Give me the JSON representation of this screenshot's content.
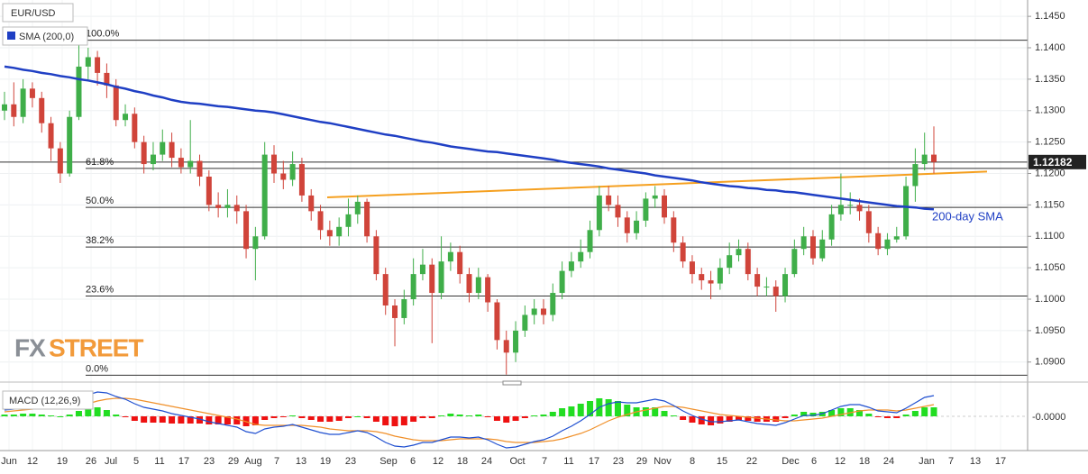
{
  "chart_data": {
    "type": "candlestick",
    "symbol": "EUR/USD",
    "legend_sma": "SMA (200,0)",
    "up_color": "#3fae49",
    "down_color": "#d0443a",
    "ylim": [
      1.0871,
      1.1476
    ],
    "yticks": [
      {
        "value": 1.09,
        "label": "1.0900"
      },
      {
        "value": 1.095,
        "label": "1.0950"
      },
      {
        "value": 1.1,
        "label": "1.1000"
      },
      {
        "value": 1.105,
        "label": "1.1050"
      },
      {
        "value": 1.11,
        "label": "1.1100"
      },
      {
        "value": 1.115,
        "label": "1.1150"
      },
      {
        "value": 1.12,
        "label": "1.1200"
      },
      {
        "value": 1.125,
        "label": "1.1250"
      },
      {
        "value": 1.13,
        "label": "1.1300"
      },
      {
        "value": 1.135,
        "label": "1.1350"
      },
      {
        "value": 1.14,
        "label": "1.1400"
      },
      {
        "value": 1.145,
        "label": "1.1450"
      }
    ],
    "grid": true,
    "last_price": 1.12182,
    "x_labels": [
      "Jun",
      "12",
      "19",
      "26",
      "Jul",
      "5",
      "11",
      "17",
      "23",
      "29",
      "Aug",
      "7",
      "13",
      "19",
      "23",
      "Sep",
      "6",
      "12",
      "18",
      "24",
      "Oct",
      "7",
      "11",
      "17",
      "23",
      "29",
      "Nov",
      "8",
      "15",
      "22",
      "Dec",
      "6",
      "12",
      "18",
      "24",
      "Jan",
      "7",
      "13",
      "17"
    ],
    "candles": [
      [
        1.13,
        1.133,
        1.1285,
        1.131
      ],
      [
        1.131,
        1.1345,
        1.1275,
        1.129
      ],
      [
        1.129,
        1.135,
        1.128,
        1.1335
      ],
      [
        1.1335,
        1.1345,
        1.1305,
        1.132
      ],
      [
        1.132,
        1.133,
        1.1265,
        1.128
      ],
      [
        1.128,
        1.129,
        1.122,
        1.124
      ],
      [
        1.124,
        1.125,
        1.1185,
        1.12
      ],
      [
        1.12,
        1.13,
        1.1195,
        1.129
      ],
      [
        1.129,
        1.141,
        1.1285,
        1.137
      ],
      [
        1.137,
        1.14,
        1.135,
        1.1385
      ],
      [
        1.1385,
        1.1395,
        1.134,
        1.136
      ],
      [
        1.136,
        1.1375,
        1.132,
        1.134
      ],
      [
        1.134,
        1.135,
        1.1275,
        1.1285
      ],
      [
        1.1285,
        1.131,
        1.1275,
        1.1295
      ],
      [
        1.1295,
        1.1305,
        1.124,
        1.125
      ],
      [
        1.125,
        1.126,
        1.12,
        1.1215
      ],
      [
        1.1215,
        1.125,
        1.1205,
        1.123
      ],
      [
        1.123,
        1.127,
        1.122,
        1.125
      ],
      [
        1.125,
        1.1265,
        1.121,
        1.1225
      ],
      [
        1.1225,
        1.124,
        1.12,
        1.121
      ],
      [
        1.121,
        1.1285,
        1.12,
        1.122
      ],
      [
        1.122,
        1.123,
        1.118,
        1.1195
      ],
      [
        1.1195,
        1.1205,
        1.114,
        1.115
      ],
      [
        1.115,
        1.117,
        1.113,
        1.1145
      ],
      [
        1.1145,
        1.1175,
        1.113,
        1.115
      ],
      [
        1.115,
        1.1165,
        1.112,
        1.114
      ],
      [
        1.114,
        1.115,
        1.1065,
        1.108
      ],
      [
        1.108,
        1.1115,
        1.103,
        1.11
      ],
      [
        1.11,
        1.125,
        1.1095,
        1.123
      ],
      [
        1.123,
        1.1245,
        1.1185,
        1.12
      ],
      [
        1.12,
        1.122,
        1.1175,
        1.119
      ],
      [
        1.119,
        1.1235,
        1.118,
        1.1215
      ],
      [
        1.1215,
        1.1225,
        1.1155,
        1.1165
      ],
      [
        1.1165,
        1.1175,
        1.1125,
        1.114
      ],
      [
        1.114,
        1.115,
        1.1095,
        1.111
      ],
      [
        1.111,
        1.1125,
        1.1085,
        1.11
      ],
      [
        1.11,
        1.113,
        1.1085,
        1.1115
      ],
      [
        1.1115,
        1.116,
        1.11,
        1.1135
      ],
      [
        1.1135,
        1.1165,
        1.112,
        1.1155
      ],
      [
        1.1155,
        1.116,
        1.109,
        1.11
      ],
      [
        1.11,
        1.111,
        1.103,
        1.104
      ],
      [
        1.104,
        1.105,
        1.0975,
        1.099
      ],
      [
        1.099,
        1.1,
        1.0925,
        1.097
      ],
      [
        1.097,
        1.1015,
        1.096,
        1.1
      ],
      [
        1.1,
        1.1065,
        1.099,
        1.104
      ],
      [
        1.104,
        1.108,
        1.103,
        1.1055
      ],
      [
        1.1055,
        1.1065,
        1.093,
        1.101
      ],
      [
        1.101,
        1.11,
        1.1,
        1.106
      ],
      [
        1.106,
        1.109,
        1.1045,
        1.1075
      ],
      [
        1.1075,
        1.1085,
        1.1025,
        1.104
      ],
      [
        1.104,
        1.105,
        1.0995,
        1.101
      ],
      [
        1.101,
        1.105,
        1.1,
        1.1035
      ],
      [
        1.1035,
        1.104,
        1.098,
        1.0995
      ],
      [
        1.0995,
        1.1,
        1.092,
        1.0935
      ],
      [
        1.0935,
        1.095,
        1.088,
        1.0915
      ],
      [
        1.0915,
        1.0965,
        1.09,
        1.095
      ],
      [
        1.095,
        1.099,
        1.094,
        1.0975
      ],
      [
        1.0975,
        1.1,
        1.096,
        1.0985
      ],
      [
        1.0985,
        1.1,
        1.096,
        1.0975
      ],
      [
        1.0975,
        1.1025,
        1.0965,
        1.101
      ],
      [
        1.101,
        1.106,
        1.1,
        1.1045
      ],
      [
        1.1045,
        1.1075,
        1.1035,
        1.106
      ],
      [
        1.106,
        1.1095,
        1.105,
        1.1075
      ],
      [
        1.1075,
        1.1125,
        1.1065,
        1.111
      ],
      [
        1.111,
        1.118,
        1.11,
        1.1165
      ],
      [
        1.1165,
        1.118,
        1.114,
        1.115
      ],
      [
        1.115,
        1.1165,
        1.1115,
        1.113
      ],
      [
        1.113,
        1.114,
        1.109,
        1.1105
      ],
      [
        1.1105,
        1.114,
        1.1095,
        1.1125
      ],
      [
        1.1125,
        1.117,
        1.1115,
        1.116
      ],
      [
        1.116,
        1.118,
        1.1145,
        1.1165
      ],
      [
        1.1165,
        1.1175,
        1.112,
        1.113
      ],
      [
        1.113,
        1.114,
        1.1075,
        1.109
      ],
      [
        1.109,
        1.11,
        1.105,
        1.106
      ],
      [
        1.106,
        1.107,
        1.1025,
        1.104
      ],
      [
        1.104,
        1.105,
        1.1015,
        1.103
      ],
      [
        1.103,
        1.1045,
        1.1,
        1.1025
      ],
      [
        1.1025,
        1.1065,
        1.1015,
        1.105
      ],
      [
        1.105,
        1.109,
        1.104,
        1.107
      ],
      [
        1.107,
        1.1095,
        1.106,
        1.108
      ],
      [
        1.108,
        1.109,
        1.103,
        1.104
      ],
      [
        1.104,
        1.105,
        1.1005,
        1.102
      ],
      [
        1.102,
        1.1035,
        1.1005,
        1.102
      ],
      [
        1.102,
        1.103,
        1.098,
        1.1005
      ],
      [
        1.1005,
        1.105,
        1.0995,
        1.104
      ],
      [
        1.104,
        1.1095,
        1.1035,
        1.108
      ],
      [
        1.108,
        1.1115,
        1.107,
        1.11
      ],
      [
        1.11,
        1.111,
        1.1055,
        1.1065
      ],
      [
        1.1065,
        1.111,
        1.106,
        1.1095
      ],
      [
        1.1095,
        1.115,
        1.1085,
        1.1135
      ],
      [
        1.1135,
        1.12,
        1.1125,
        1.115
      ],
      [
        1.115,
        1.117,
        1.1135,
        1.115
      ],
      [
        1.115,
        1.116,
        1.1125,
        1.114
      ],
      [
        1.114,
        1.115,
        1.109,
        1.1105
      ],
      [
        1.1105,
        1.1115,
        1.107,
        1.108
      ],
      [
        1.108,
        1.1105,
        1.107,
        1.1095
      ],
      [
        1.1095,
        1.1115,
        1.109,
        1.11
      ],
      [
        1.11,
        1.1195,
        1.1095,
        1.118
      ],
      [
        1.118,
        1.124,
        1.1155,
        1.1215
      ],
      [
        1.1215,
        1.1265,
        1.1205,
        1.123
      ],
      [
        1.123,
        1.1275,
        1.12,
        1.12182
      ]
    ],
    "sma": {
      "name": "SMA (200,0)",
      "color": "#1f3fc4",
      "values": [
        1.137,
        1.1368,
        1.1365,
        1.1363,
        1.136,
        1.1358,
        1.1355,
        1.1353,
        1.135,
        1.1348,
        1.1345,
        1.1342,
        1.1338,
        1.1335,
        1.1331,
        1.1328,
        1.1324,
        1.1321,
        1.1317,
        1.1314,
        1.1312,
        1.1311,
        1.1309,
        1.1307,
        1.1306,
        1.1304,
        1.1302,
        1.13,
        1.1299,
        1.1297,
        1.1294,
        1.1291,
        1.1288,
        1.1285,
        1.1282,
        1.128,
        1.1277,
        1.1274,
        1.1271,
        1.1268,
        1.1265,
        1.1262,
        1.126,
        1.1257,
        1.1254,
        1.1251,
        1.1249,
        1.1246,
        1.1243,
        1.1241,
        1.1239,
        1.1237,
        1.1235,
        1.1234,
        1.1232,
        1.123,
        1.1228,
        1.1226,
        1.1224,
        1.1222,
        1.1219,
        1.1217,
        1.1215,
        1.1213,
        1.1211,
        1.1208,
        1.1206,
        1.1204,
        1.1202,
        1.12,
        1.1197,
        1.1195,
        1.1193,
        1.1191,
        1.1189,
        1.1186,
        1.1184,
        1.1182,
        1.118,
        1.1179,
        1.1177,
        1.1176,
        1.1174,
        1.1173,
        1.1171,
        1.117,
        1.1168,
        1.1166,
        1.1164,
        1.1162,
        1.116,
        1.1158,
        1.1156,
        1.1154,
        1.1152,
        1.115,
        1.1148,
        1.1147,
        1.1146,
        1.1144,
        1.1143
      ]
    },
    "sma_annotation": "200-day SMA",
    "trendline": {
      "color": "#f5a020",
      "values": [
        1.1162,
        1.1203
      ]
    },
    "fib_levels": [
      {
        "label": "100.0%",
        "value": 1.1412
      },
      {
        "label": "61.8%",
        "value": 1.1208
      },
      {
        "label": "50.0%",
        "value": 1.1146
      },
      {
        "label": "38.2%",
        "value": 1.1083
      },
      {
        "label": "23.6%",
        "value": 1.1005
      },
      {
        "label": "0.0%",
        "value": 1.0879
      }
    ],
    "brand": [
      "FX",
      "STREET"
    ],
    "macd": {
      "title": "MACD (12,26,9)",
      "ylim": [
        -0.0038,
        0.0032
      ],
      "yticks": [
        {
          "value": 0,
          "label": "-0.0000"
        }
      ],
      "macd_color": "#1f4fd0",
      "signal_color": "#f0902a",
      "hist_up_color": "#22dd22",
      "hist_down_color": "#ee1111",
      "macd": [
        0.0007,
        0.0008,
        0.001,
        0.0011,
        0.0011,
        0.001,
        0.0009,
        0.0012,
        0.0018,
        0.0024,
        0.0027,
        0.0026,
        0.0022,
        0.0019,
        0.0014,
        0.001,
        0.0008,
        0.0006,
        0.0003,
        0.0001,
        -0.0001,
        -0.0003,
        -0.0006,
        -0.0008,
        -0.001,
        -0.0012,
        -0.0017,
        -0.0019,
        -0.0014,
        -0.0012,
        -0.0011,
        -0.0009,
        -0.0012,
        -0.0015,
        -0.0018,
        -0.002,
        -0.002,
        -0.0018,
        -0.0016,
        -0.0018,
        -0.0023,
        -0.0029,
        -0.0033,
        -0.0034,
        -0.0032,
        -0.0029,
        -0.0029,
        -0.0026,
        -0.0023,
        -0.0023,
        -0.0024,
        -0.0023,
        -0.0026,
        -0.0031,
        -0.0035,
        -0.0034,
        -0.0031,
        -0.0028,
        -0.0026,
        -0.0022,
        -0.0016,
        -0.0011,
        -0.0005,
        0.0002,
        0.001,
        0.0014,
        0.0016,
        0.0015,
        0.0015,
        0.0017,
        0.0019,
        0.0017,
        0.0012,
        0.0006,
        0.0001,
        -0.0003,
        -0.0006,
        -0.0006,
        -0.0005,
        -0.0004,
        -0.0006,
        -0.0008,
        -0.0009,
        -0.001,
        -0.0007,
        -0.0003,
        0.0001,
        0.0001,
        0.0003,
        0.0007,
        0.0011,
        0.0013,
        0.0013,
        0.001,
        0.0006,
        0.0005,
        0.0004,
        0.0009,
        0.0015,
        0.0021,
        0.0023
      ],
      "signal": [
        0.0005,
        0.0006,
        0.0007,
        0.0008,
        0.0009,
        0.0009,
        0.0009,
        0.001,
        0.0012,
        0.0014,
        0.0017,
        0.0019,
        0.002,
        0.002,
        0.0019,
        0.0017,
        0.0015,
        0.0013,
        0.0011,
        0.0009,
        0.0007,
        0.0005,
        0.0003,
        0.0001,
        -0.0001,
        -0.0003,
        -0.0006,
        -0.0009,
        -0.001,
        -0.001,
        -0.001,
        -0.001,
        -0.001,
        -0.0011,
        -0.0012,
        -0.0014,
        -0.0015,
        -0.0016,
        -0.0016,
        -0.0016,
        -0.0017,
        -0.0019,
        -0.0022,
        -0.0024,
        -0.0026,
        -0.0027,
        -0.0027,
        -0.0027,
        -0.0026,
        -0.0025,
        -0.0025,
        -0.0025,
        -0.0025,
        -0.0026,
        -0.0028,
        -0.0029,
        -0.0029,
        -0.0029,
        -0.0028,
        -0.0027,
        -0.0025,
        -0.0022,
        -0.0019,
        -0.0015,
        -0.001,
        -0.0005,
        -0.0001,
        0.0002,
        0.0005,
        0.0007,
        0.0009,
        0.0011,
        0.0011,
        0.001,
        0.0008,
        0.0006,
        0.0004,
        0.0002,
        0.0001,
        0.0,
        -0.0001,
        -0.0002,
        -0.0003,
        -0.0004,
        -0.0005,
        -0.0005,
        -0.0004,
        -0.0003,
        -0.0002,
        0.0,
        0.0002,
        0.0004,
        0.0006,
        0.0007,
        0.0007,
        0.0007,
        0.0006,
        0.0007,
        0.0009,
        0.0011,
        0.0013
      ],
      "histogram": [
        0.0002,
        0.0002,
        0.0003,
        0.0003,
        0.0002,
        0.0001,
        0.0,
        0.0002,
        0.0006,
        0.001,
        0.001,
        0.0007,
        0.0002,
        -0.0001,
        -0.0005,
        -0.0007,
        -0.0007,
        -0.0007,
        -0.0008,
        -0.0008,
        -0.0008,
        -0.0008,
        -0.0009,
        -0.0009,
        -0.0009,
        -0.0009,
        -0.0011,
        -0.001,
        -0.0004,
        -0.0002,
        -0.0001,
        0.0001,
        -0.0002,
        -0.0004,
        -0.0006,
        -0.0006,
        -0.0005,
        -0.0002,
        0.0,
        -0.0002,
        -0.0006,
        -0.001,
        -0.0011,
        -0.001,
        -0.0006,
        -0.0002,
        -0.0002,
        0.0001,
        0.0003,
        0.0002,
        0.0001,
        0.0002,
        -0.0001,
        -0.0005,
        -0.0007,
        -0.0005,
        -0.0002,
        0.0001,
        0.0002,
        0.0005,
        0.0009,
        0.0011,
        0.0014,
        0.0017,
        0.002,
        0.0019,
        0.0017,
        0.0013,
        0.001,
        0.001,
        0.001,
        0.0006,
        0.0001,
        -0.0004,
        -0.0007,
        -0.0009,
        -0.001,
        -0.0008,
        -0.0006,
        -0.0004,
        -0.0005,
        -0.0006,
        -0.0006,
        -0.0006,
        -0.0002,
        0.0002,
        0.0005,
        0.0004,
        0.0005,
        0.0007,
        0.0009,
        0.0009,
        0.0007,
        0.0003,
        -0.0001,
        -0.0002,
        -0.0002,
        0.0002,
        0.0006,
        0.001,
        0.001
      ]
    }
  }
}
